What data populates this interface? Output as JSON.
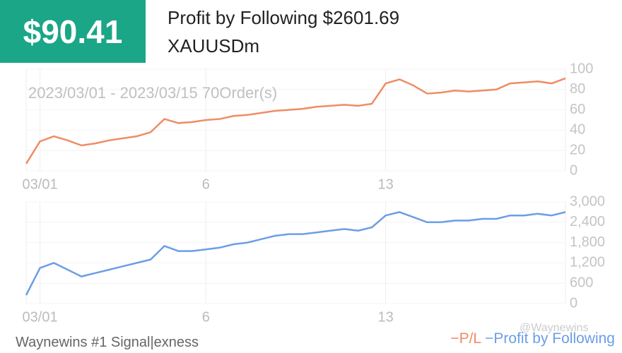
{
  "header": {
    "badge": "$90.41",
    "title": "Profit by Following $2601.69",
    "symbol": "XAUUSDm"
  },
  "chart_data": [
    {
      "type": "line",
      "annotation": "2023/03/01 - 2023/03/15 70Order(s)",
      "categories": [
        null,
        "03/01",
        null,
        null,
        null,
        null,
        null,
        null,
        null,
        null,
        null,
        null,
        null,
        "6",
        null,
        null,
        null,
        null,
        null,
        null,
        null,
        null,
        null,
        null,
        null,
        null,
        "13",
        null,
        null,
        null,
        null,
        null,
        null,
        null,
        null,
        null,
        null,
        null,
        null,
        null
      ],
      "series": [
        {
          "name": "P/L",
          "color": "#ef8c64",
          "values": [
            7,
            29,
            34,
            30,
            25,
            27,
            30,
            32,
            34,
            38,
            51,
            47,
            48,
            50,
            51,
            54,
            55,
            57,
            59,
            60,
            61,
            63,
            64,
            65,
            64,
            66,
            86,
            90,
            84,
            76,
            77,
            79,
            78,
            79,
            80,
            86,
            87,
            88,
            86,
            91
          ]
        }
      ],
      "ylim": [
        0,
        100
      ],
      "yticks": [
        0,
        20,
        40,
        60,
        80,
        100
      ]
    },
    {
      "type": "line",
      "categories": [
        null,
        "03/01",
        null,
        null,
        null,
        null,
        null,
        null,
        null,
        null,
        null,
        null,
        null,
        "6",
        null,
        null,
        null,
        null,
        null,
        null,
        null,
        null,
        null,
        null,
        null,
        null,
        "13",
        null,
        null,
        null,
        null,
        null,
        null,
        null,
        null,
        null,
        null,
        null,
        null,
        null
      ],
      "series": [
        {
          "name": "Profit by Following",
          "color": "#6c9ee6",
          "values": [
            250,
            1050,
            1200,
            1000,
            800,
            900,
            1000,
            1100,
            1200,
            1300,
            1700,
            1550,
            1550,
            1600,
            1650,
            1750,
            1800,
            1900,
            2000,
            2050,
            2050,
            2100,
            2150,
            2200,
            2150,
            2250,
            2600,
            2700,
            2550,
            2400,
            2400,
            2450,
            2450,
            2500,
            2500,
            2600,
            2600,
            2650,
            2600,
            2700
          ]
        }
      ],
      "ylim": [
        0,
        3000
      ],
      "yticks": [
        0,
        600,
        {
          "value": 1200,
          "label": "1,200"
        },
        {
          "value": 1800,
          "label": "1,800"
        },
        {
          "value": 2400,
          "label": "2,400"
        },
        {
          "value": 3000,
          "label": "3,000"
        }
      ]
    }
  ],
  "footer": {
    "signal": "Waynewins #1 Signal|exness",
    "watermark": "@Waynewins"
  }
}
